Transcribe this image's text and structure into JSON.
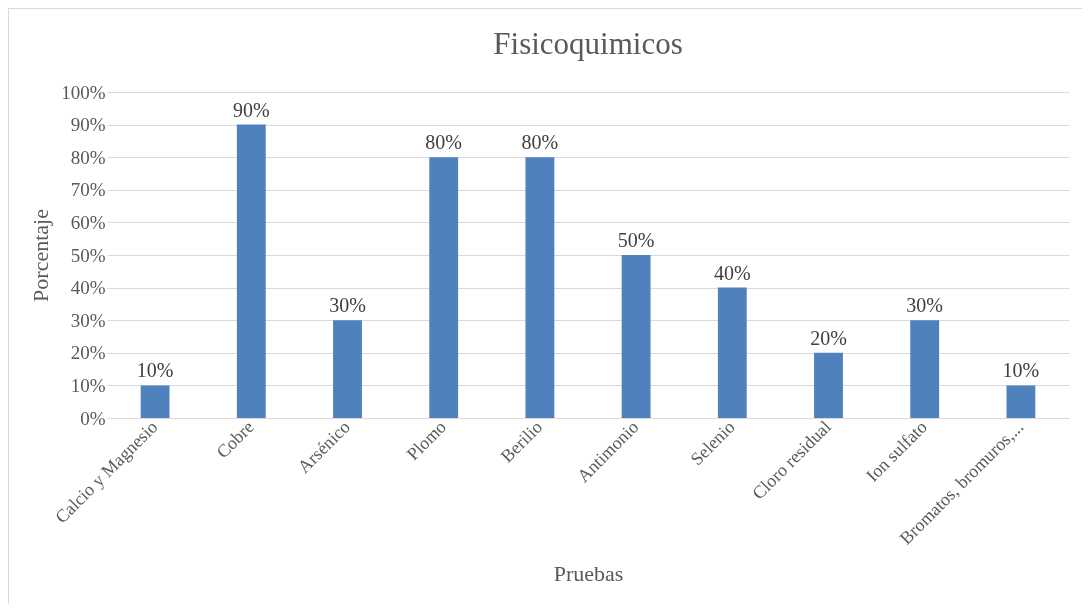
{
  "chart_data": {
    "type": "bar",
    "title": "Fisicoquimicos",
    "xlabel": "Pruebas",
    "ylabel": "Porcentaje",
    "categories": [
      "Calcio y Magnesio",
      "Cobre",
      "Arsénico",
      "Plomo",
      "Berilio",
      "Antimonio",
      "Selenio",
      "Cloro residual",
      "Ion sulfato",
      "Bromatos, bromuros,..."
    ],
    "values": [
      10,
      90,
      30,
      80,
      80,
      50,
      40,
      20,
      30,
      10
    ],
    "value_labels": [
      "10%",
      "90%",
      "30%",
      "80%",
      "80%",
      "50%",
      "40%",
      "20%",
      "30%",
      "10%"
    ],
    "color": "#4f81bd",
    "ylim": [
      0,
      100
    ],
    "yticks": [
      {
        "value": 0,
        "label": "0%"
      },
      {
        "value": 10,
        "label": "10%"
      },
      {
        "value": 20,
        "label": "20%"
      },
      {
        "value": 30,
        "label": "30%"
      },
      {
        "value": 40,
        "label": "40%"
      },
      {
        "value": 50,
        "label": "50%"
      },
      {
        "value": 60,
        "label": "60%"
      },
      {
        "value": 70,
        "label": "70%"
      },
      {
        "value": 80,
        "label": "80%"
      },
      {
        "value": 90,
        "label": "90%"
      },
      {
        "value": 100,
        "label": "100%"
      }
    ],
    "grid": "y"
  }
}
